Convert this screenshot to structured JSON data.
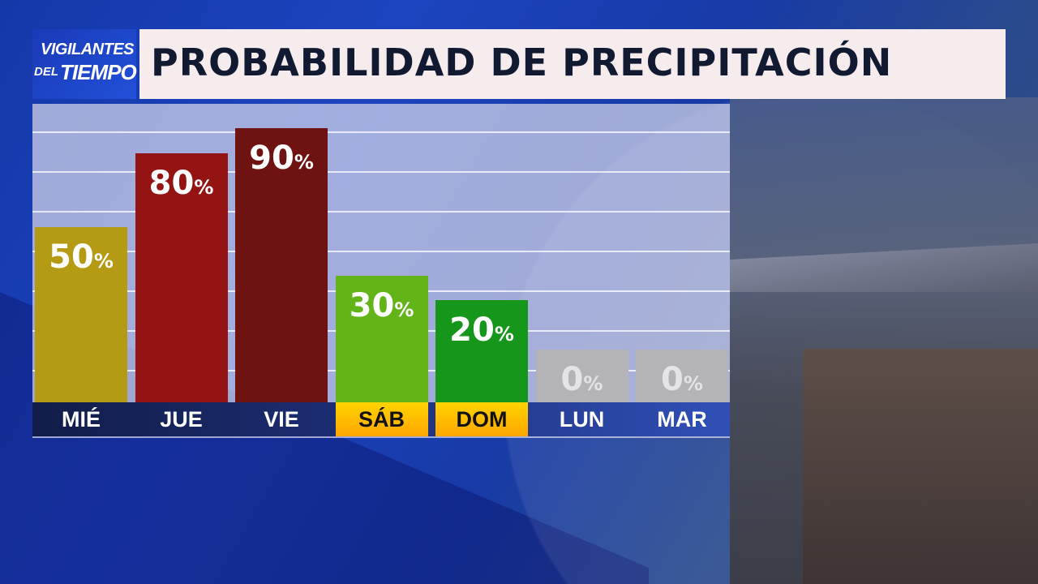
{
  "logo": {
    "line1": "VIGILANTES",
    "line2a": "DEL",
    "line2b": "TIEMPO"
  },
  "header": {
    "title": "PROBABILIDAD DE PRECIPITACIÓN"
  },
  "chart_data": {
    "type": "bar",
    "title": "PROBABILIDAD DE PRECIPITACIÓN",
    "categories": [
      "MIÉ",
      "JUE",
      "VIE",
      "SÁB",
      "DOM",
      "LUN",
      "MAR"
    ],
    "values": [
      50,
      80,
      90,
      30,
      20,
      0,
      0
    ],
    "unit": "%",
    "ylim": [
      0,
      100
    ],
    "grid": true,
    "bar_colors": [
      "#b59a14",
      "#941414",
      "#6e1212",
      "#62b418",
      "#16961a",
      "#b4b4b8",
      "#b4b4b8"
    ],
    "weekend": [
      false,
      false,
      false,
      true,
      true,
      false,
      false
    ]
  }
}
